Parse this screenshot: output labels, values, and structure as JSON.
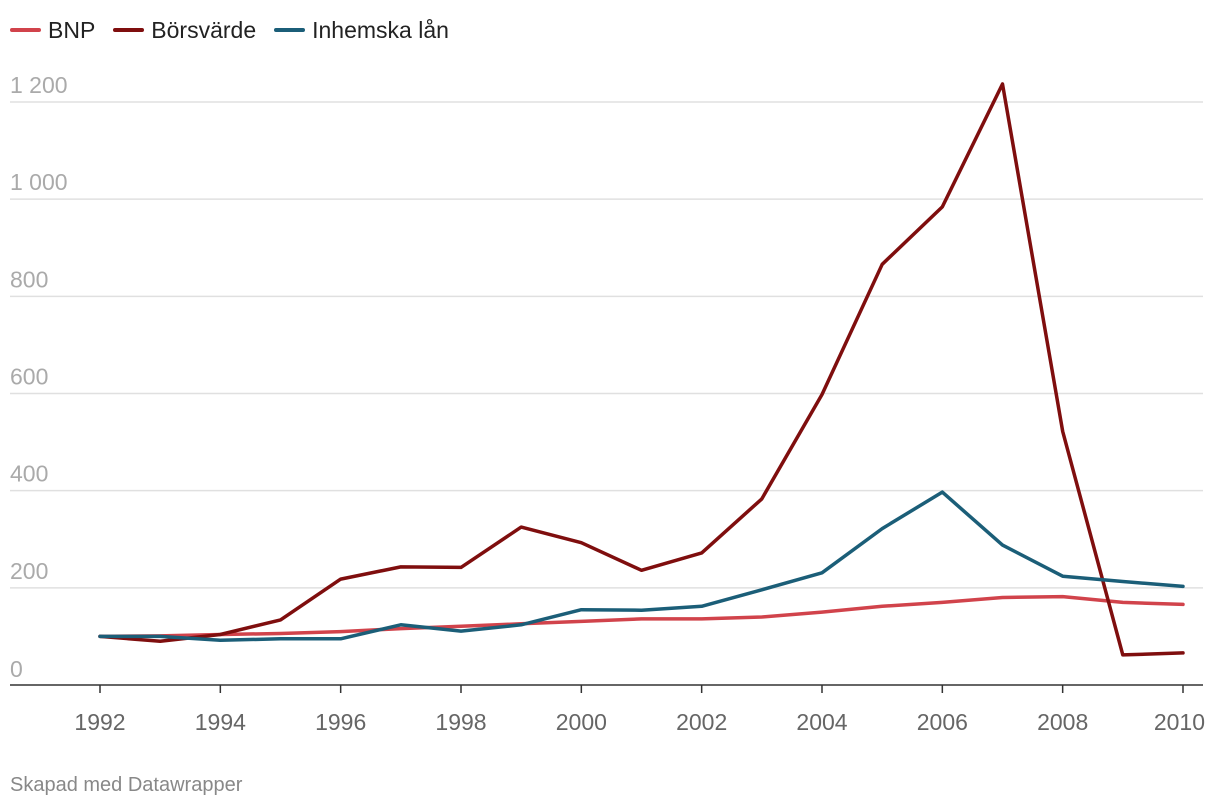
{
  "chart_data": {
    "type": "line",
    "x": [
      1992,
      1993,
      1994,
      1995,
      1996,
      1997,
      1998,
      1999,
      2000,
      2001,
      2002,
      2003,
      2004,
      2005,
      2006,
      2007,
      2008,
      2009,
      2010
    ],
    "series": [
      {
        "name": "BNP",
        "color": "#d1434b",
        "values": [
          100,
          101,
          104,
          106,
          110,
          116,
          121,
          126,
          131,
          136,
          136,
          140,
          150,
          162,
          170,
          180,
          182,
          170,
          166
        ]
      },
      {
        "name": "Börsvärde",
        "color": "#7f0e0e",
        "values": [
          100,
          90,
          104,
          134,
          218,
          243,
          242,
          325,
          293,
          236,
          272,
          383,
          598,
          866,
          984,
          1237,
          522,
          62,
          66
        ]
      },
      {
        "name": "Inhemska lån",
        "color": "#1b5e78",
        "values": [
          100,
          100,
          92,
          95,
          95,
          124,
          111,
          124,
          155,
          154,
          162,
          196,
          231,
          322,
          397,
          288,
          224,
          213,
          203
        ]
      }
    ],
    "y_ticks": [
      0,
      200,
      400,
      600,
      800,
      1000,
      1200
    ],
    "y_tick_labels": [
      "0",
      "200",
      "400",
      "600",
      "800",
      "1 000",
      "1 200"
    ],
    "x_ticks": [
      1992,
      1994,
      1996,
      1998,
      2000,
      2002,
      2004,
      2006,
      2008,
      2010
    ],
    "x_tick_labels": [
      "1992",
      "1994",
      "1996",
      "1998",
      "2000",
      "2002",
      "2004",
      "2006",
      "2008",
      "2010"
    ],
    "ylim": [
      0,
      1200
    ],
    "xlim": [
      1992,
      2010
    ],
    "grid": true,
    "legend_position": "top-left",
    "gridline_color": "#e0e0e0",
    "tick_label_color": "#aaaaaa",
    "x_tick_label_color": "#666666"
  },
  "footer": {
    "credit": "Skapad med Datawrapper"
  }
}
